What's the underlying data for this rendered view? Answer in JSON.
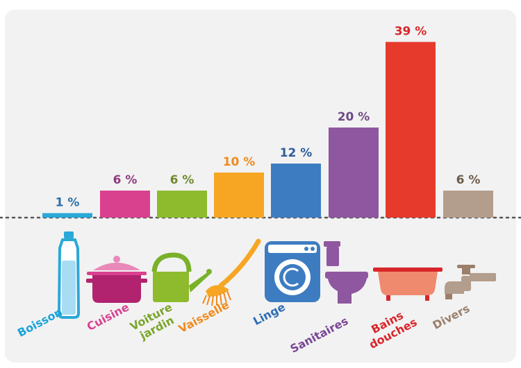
{
  "chart_data": {
    "type": "bar",
    "categories": [
      "Boisson",
      "Cuisine",
      "Voiture jardin",
      "Vaisselle",
      "Linge",
      "Sanitaires",
      "Bains douches",
      "Divers"
    ],
    "category_lines": [
      [
        "Boisson"
      ],
      [
        "Cuisine"
      ],
      [
        "Voiture",
        "jardin"
      ],
      [
        "Vaisselle"
      ],
      [
        "Linge"
      ],
      [
        "Sanitaires"
      ],
      [
        "Bains",
        "douches"
      ],
      [
        "Divers"
      ]
    ],
    "values": [
      1,
      6,
      6,
      10,
      12,
      20,
      39,
      6
    ],
    "value_labels": [
      "1 %",
      "6 %",
      "6 %",
      "10 %",
      "12 %",
      "20 %",
      "39 %",
      "6 %"
    ],
    "colors": [
      "#2aa8d8",
      "#d9418f",
      "#8dbb2d",
      "#f6a623",
      "#3d7cc1",
      "#8f579f",
      "#e53a2c",
      "#b39d8c"
    ],
    "label_colors": [
      "#1aa3d9",
      "#d9418f",
      "#7aa62a",
      "#f08a1c",
      "#2f6db4",
      "#7a4795",
      "#d8262b",
      "#9b7f6b"
    ],
    "value_label_colors": [
      "#2a6fa8",
      "#8f3a7e",
      "#6e8a2c",
      "#ef8a1d",
      "#2f5d99",
      "#6c4a86",
      "#d8262b",
      "#6b5a4a"
    ],
    "icons": [
      "bottle-icon",
      "cooking-pot-icon",
      "watering-can-icon",
      "dish-brush-icon",
      "washing-machine-icon",
      "toilet-icon",
      "bathtub-icon",
      "faucet-icon"
    ],
    "ylim": [
      0,
      40
    ],
    "grid": false,
    "legend": "none"
  }
}
